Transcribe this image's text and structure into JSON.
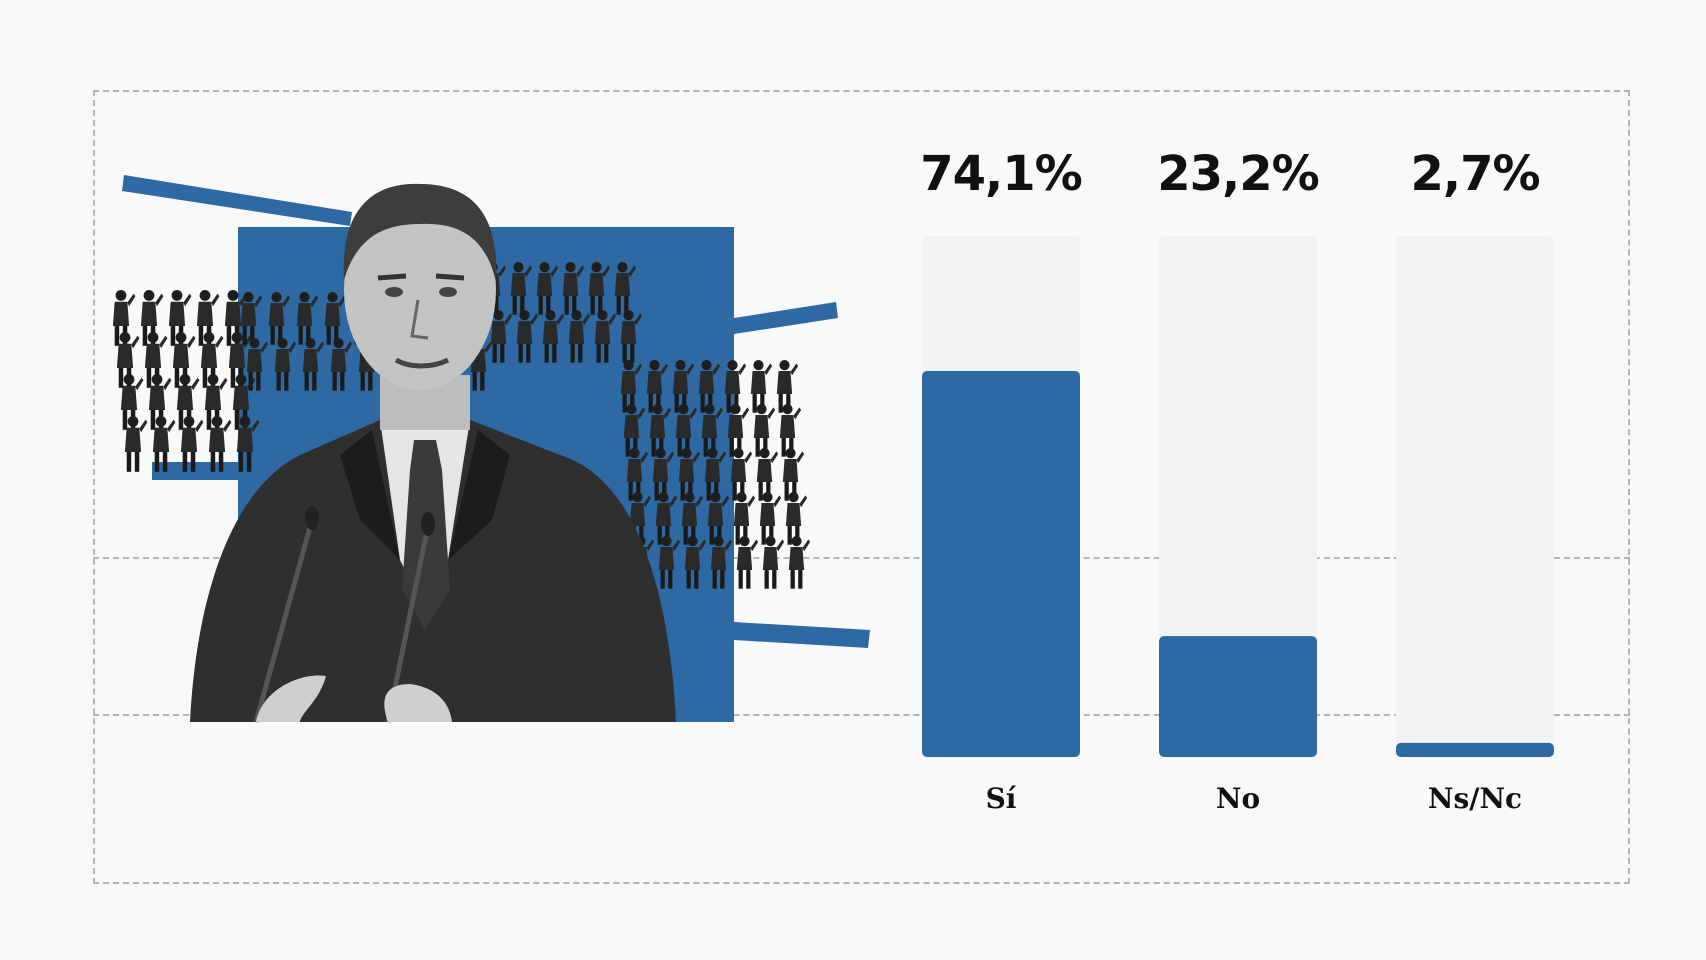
{
  "colors": {
    "bar_fill": "#2e69a3",
    "bar_track": "#f2f2f2",
    "accent_blue": "#2e69a3",
    "background": "#f9f9f9",
    "text": "#111111"
  },
  "chart_data": {
    "type": "bar",
    "categories": [
      "Sí",
      "No",
      "Ns/Nc"
    ],
    "values": [
      74.1,
      23.2,
      2.7
    ],
    "value_labels": [
      "74,1%",
      "23,2%",
      "2,7%"
    ],
    "ylim": [
      0,
      100
    ],
    "grid": false,
    "legend": "none"
  },
  "illustration": {
    "description_icon": "politician-speaking-with-soldiers-collage-icon"
  }
}
